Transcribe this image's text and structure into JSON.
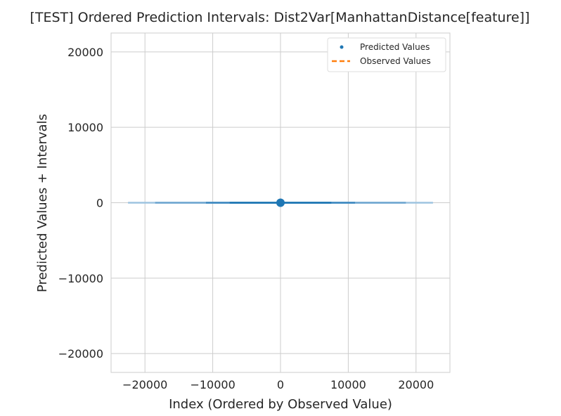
{
  "chart_data": {
    "type": "scatter",
    "title": "[TEST] Ordered Prediction Intervals: Dist2Var[ManhattanDistance[feature]]",
    "xlabel": "Index (Ordered by Observed Value)",
    "ylabel": "Predicted Values + Intervals",
    "xlim": [
      -25000,
      25000
    ],
    "ylim": [
      -22500,
      22500
    ],
    "xticks": [
      -20000,
      -10000,
      0,
      10000,
      20000
    ],
    "xtick_labels": [
      "−20000",
      "−10000",
      "0",
      "10000",
      "20000"
    ],
    "yticks": [
      -20000,
      -10000,
      0,
      10000,
      20000
    ],
    "ytick_labels": [
      "−20000",
      "−10000",
      "0",
      "10000",
      "20000"
    ],
    "grid": true,
    "legend_position": "top-right",
    "series": [
      {
        "name": "Predicted Values",
        "kind": "scatter",
        "color": "#1f77b4",
        "points": [
          {
            "x": 0,
            "y": 0
          }
        ]
      },
      {
        "name": "Observed Values",
        "kind": "line",
        "color": "#ff7f0e",
        "points": []
      }
    ],
    "intervals": [
      {
        "x_start": -22500,
        "x_end": 22500,
        "y": 0,
        "color": "#9ec4e0"
      },
      {
        "x_start": -18500,
        "x_end": 18500,
        "y": 0,
        "color": "#6fa6d0"
      },
      {
        "x_start": -11000,
        "x_end": 11000,
        "y": 0,
        "color": "#3f89c0"
      },
      {
        "x_start": -7500,
        "x_end": 7500,
        "y": 0,
        "color": "#1f77b4"
      }
    ]
  }
}
